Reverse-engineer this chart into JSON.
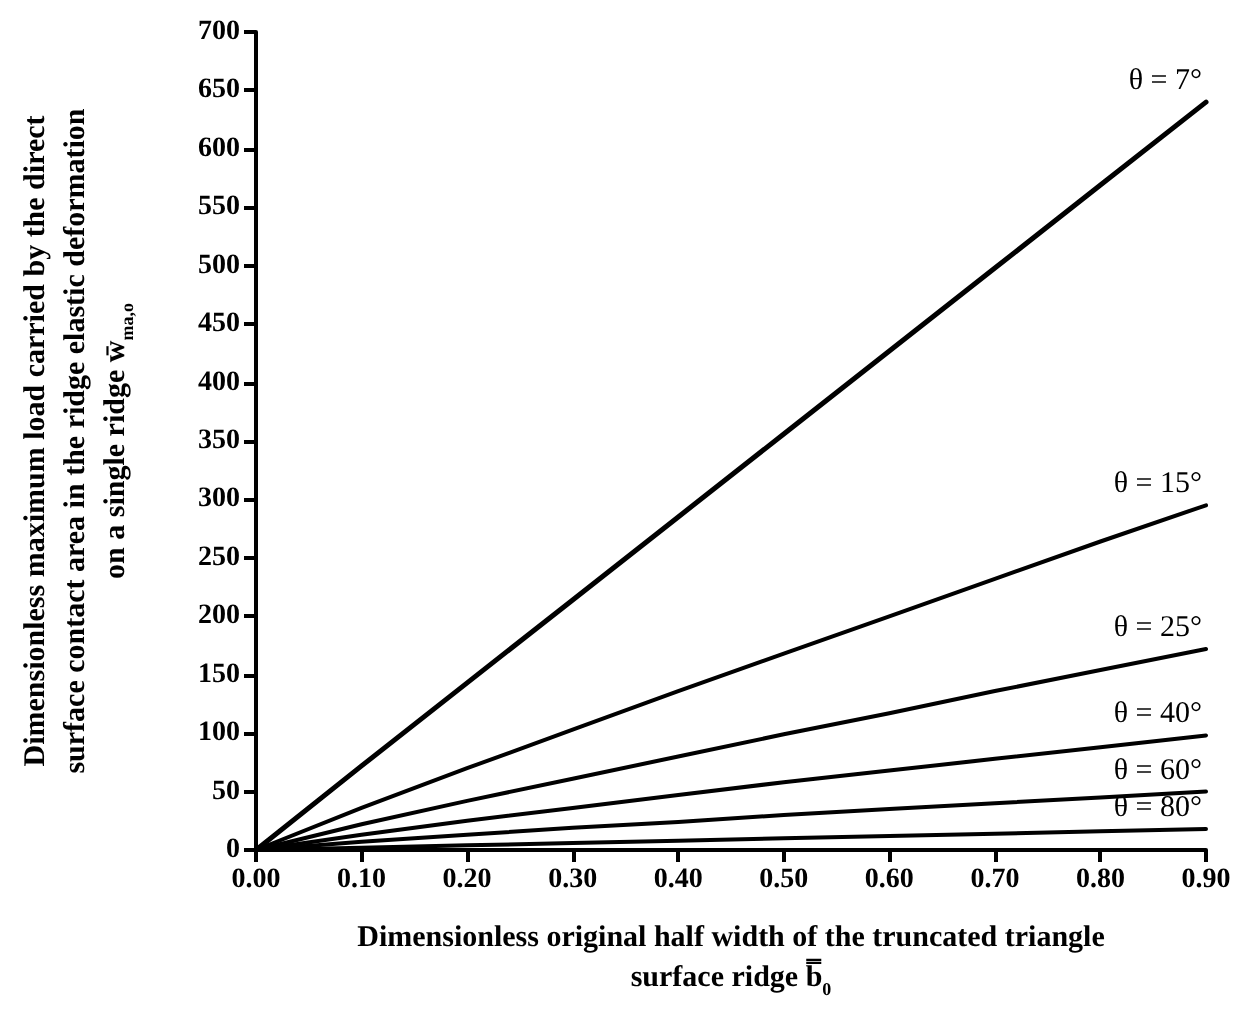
{
  "chart_data": {
    "type": "line",
    "xlabel": "Dimensionless original half width of the truncated triangle surface ridge b̿$_{0}$",
    "ylabel": "Dimensionless maximum load carried by the direct surface contact area in the ridge elastic deformation on a single ridge w̄$_{ma,o}$",
    "x": [
      0,
      0.1,
      0.2,
      0.3,
      0.4,
      0.5,
      0.6,
      0.7,
      0.8,
      0.9
    ],
    "series": [
      {
        "name": "θ = 7°",
        "color": "#000000",
        "values": [
          0,
          72,
          143,
          214,
          285,
          356,
          427,
          498,
          569,
          640
        ]
      },
      {
        "name": "θ = 15°",
        "color": "#000000",
        "values": [
          0,
          36,
          70,
          103,
          136,
          168,
          200,
          232,
          264,
          295
        ]
      },
      {
        "name": "θ = 25°",
        "color": "#000000",
        "values": [
          0,
          22,
          42,
          61,
          80,
          99,
          117,
          136,
          154,
          172
        ]
      },
      {
        "name": "θ = 40°",
        "color": "#000000",
        "values": [
          0,
          13,
          25,
          36,
          47,
          58,
          68,
          78,
          88,
          98
        ]
      },
      {
        "name": "θ = 60°",
        "color": "#000000",
        "values": [
          0,
          7,
          13,
          19,
          24,
          30,
          35,
          40,
          45,
          50
        ]
      },
      {
        "name": "θ = 80°",
        "color": "#000000",
        "values": [
          0,
          2,
          4,
          6,
          8,
          10,
          12,
          14,
          16,
          18
        ]
      }
    ],
    "xlim": [
      0,
      0.9
    ],
    "xticks": [
      {
        "value": 0,
        "label": "0.00"
      },
      {
        "value": 0.1,
        "label": "0.10"
      },
      {
        "value": 0.2,
        "label": "0.20"
      },
      {
        "value": 0.3,
        "label": "0.30"
      },
      {
        "value": 0.4,
        "label": "0.40"
      },
      {
        "value": 0.5,
        "label": "0.50"
      },
      {
        "value": 0.6,
        "label": "0.60"
      },
      {
        "value": 0.7,
        "label": "0.70"
      },
      {
        "value": 0.8,
        "label": "0.80"
      },
      {
        "value": 0.9,
        "label": "0.90"
      }
    ],
    "ylim": [
      0,
      700
    ],
    "yticks": [
      0,
      50,
      100,
      150,
      200,
      250,
      300,
      350,
      400,
      450,
      500,
      550,
      600,
      650,
      700
    ],
    "grid": false,
    "legend": false,
    "marker": "none",
    "line_style": "solid"
  }
}
